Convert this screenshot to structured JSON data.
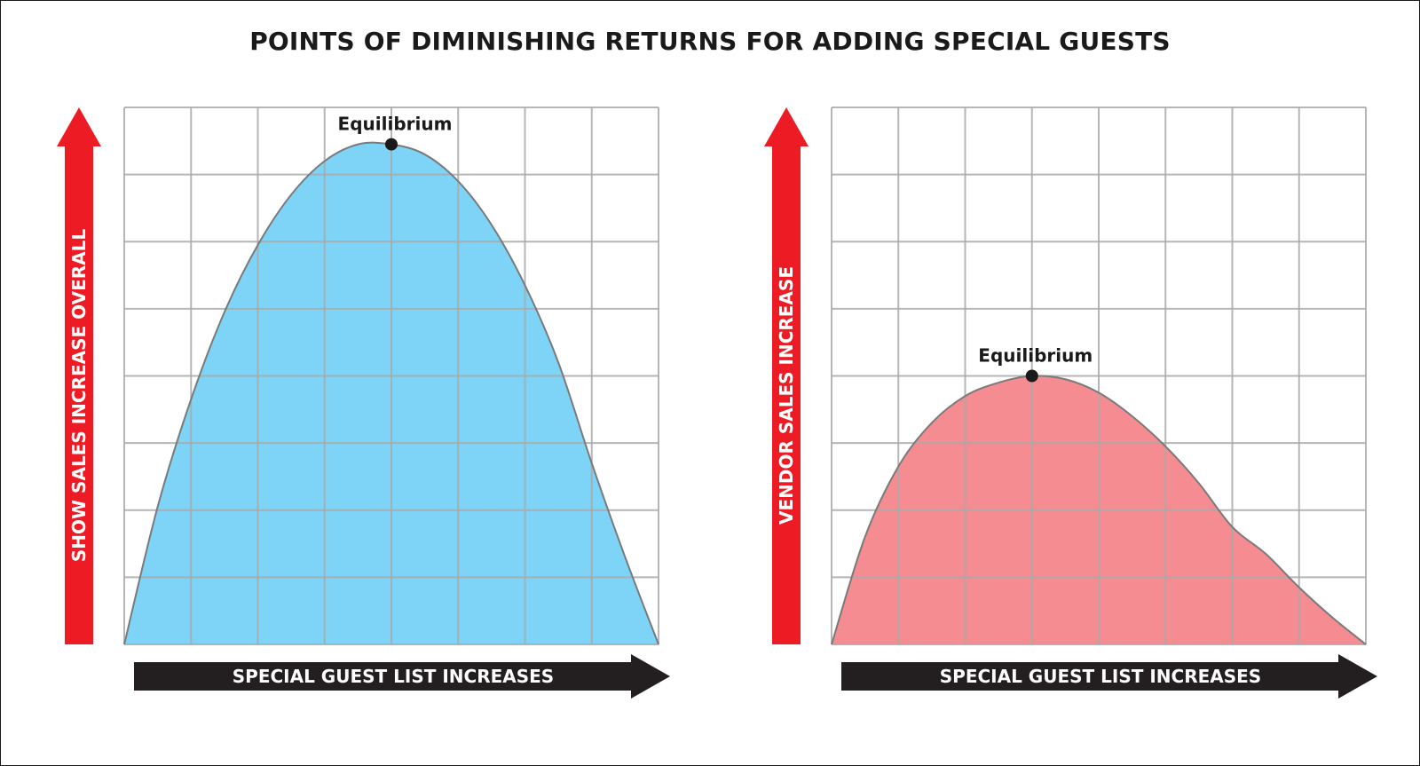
{
  "title": "POINTS OF DIMINISHING RETURNS FOR ADDING SPECIAL GUESTS",
  "colors": {
    "arrow_red": "#ed1c24",
    "arrow_black": "#231f20",
    "left_fill": "#7dd4f7",
    "right_fill": "#f48c92",
    "curve_stroke": "#7a7a7a",
    "grid": "#a9a9a9",
    "point": "#1a1a1a"
  },
  "chart_data": [
    {
      "type": "area",
      "ylabel": "SHOW SALES INCREASE OVERALL",
      "xlabel": "SPECIAL GUEST LIST INCREASES",
      "xlim": [
        0,
        8
      ],
      "ylim": [
        0,
        8
      ],
      "grid": true,
      "x": [
        0,
        0.5,
        1,
        1.5,
        2,
        2.5,
        3,
        3.5,
        4,
        4.5,
        5,
        5.5,
        6,
        6.5,
        7,
        7.5,
        8
      ],
      "y": [
        0,
        2.05,
        3.65,
        4.95,
        5.95,
        6.7,
        7.2,
        7.45,
        7.45,
        7.3,
        6.9,
        6.25,
        5.35,
        4.2,
        2.7,
        1.3,
        0
      ],
      "annotation": {
        "label": "Equilibrium",
        "x": 4,
        "y": 7.45
      }
    },
    {
      "type": "area",
      "ylabel": "VENDOR SALES INCREASE",
      "xlabel": "SPECIAL GUEST LIST INCREASES",
      "xlim": [
        0,
        8
      ],
      "ylim": [
        0,
        8
      ],
      "grid": true,
      "x": [
        0,
        0.5,
        1,
        1.5,
        2,
        2.5,
        3,
        3.5,
        4,
        4.5,
        5,
        5.5,
        6,
        6.5,
        7,
        7.5,
        8
      ],
      "y": [
        0,
        1.6,
        2.65,
        3.3,
        3.7,
        3.9,
        4.0,
        3.95,
        3.75,
        3.4,
        2.95,
        2.4,
        1.75,
        1.35,
        0.85,
        0.4,
        0
      ],
      "annotation": {
        "label": "Equilibrium",
        "x": 3,
        "y": 4.0
      }
    }
  ]
}
